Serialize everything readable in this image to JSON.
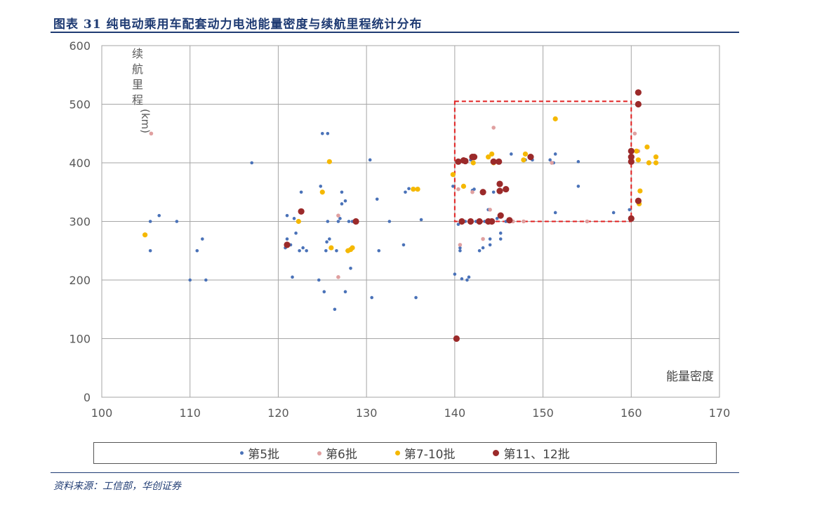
{
  "title": "图表 31  纯电动乘用车配套动力电池能量密度与续航里程统计分布",
  "source": "资料来源：工信部，华创证券",
  "chart_data": {
    "type": "scatter",
    "xlabel": "能量密度",
    "ylabel": "续航里程(km)",
    "xlim": [
      100,
      170
    ],
    "ylim": [
      0,
      600
    ],
    "x_ticks": [
      "100",
      "110",
      "120",
      "130",
      "140",
      "150",
      "160",
      "170"
    ],
    "y_ticks": [
      "0",
      "100",
      "200",
      "300",
      "400",
      "500",
      "600"
    ],
    "grid": true,
    "legend_position": "bottom",
    "highlight_box": {
      "x_range": [
        140,
        160
      ],
      "y_range": [
        300,
        505
      ],
      "color": "#e02020"
    },
    "series": [
      {
        "name": "第5批",
        "color": "#4a72b8",
        "points": [
          [
            105.5,
            300
          ],
          [
            105.5,
            250
          ],
          [
            106.5,
            310
          ],
          [
            108.5,
            300
          ],
          [
            110,
            200
          ],
          [
            110.8,
            250
          ],
          [
            111.4,
            270
          ],
          [
            111.8,
            200
          ],
          [
            117,
            400
          ],
          [
            120.8,
            255
          ],
          [
            121,
            270
          ],
          [
            121,
            310
          ],
          [
            121.4,
            260
          ],
          [
            121.6,
            205
          ],
          [
            121.8,
            305
          ],
          [
            122,
            280
          ],
          [
            122.4,
            250
          ],
          [
            122.6,
            350
          ],
          [
            122.8,
            255
          ],
          [
            123.2,
            250
          ],
          [
            124.6,
            200
          ],
          [
            124.8,
            360
          ],
          [
            125,
            450
          ],
          [
            125.2,
            180
          ],
          [
            125.4,
            250
          ],
          [
            125.5,
            265
          ],
          [
            125.6,
            300
          ],
          [
            125.6,
            450
          ],
          [
            125.8,
            270
          ],
          [
            126,
            255
          ],
          [
            126.4,
            150
          ],
          [
            126.6,
            250
          ],
          [
            126.8,
            300
          ],
          [
            127,
            305
          ],
          [
            127.2,
            350
          ],
          [
            127.2,
            330
          ],
          [
            127.6,
            335
          ],
          [
            127.6,
            180
          ],
          [
            127.8,
            250
          ],
          [
            128,
            300
          ],
          [
            128.2,
            220
          ],
          [
            128.4,
            300
          ],
          [
            130.4,
            405
          ],
          [
            130.6,
            170
          ],
          [
            131.2,
            338
          ],
          [
            131.4,
            250
          ],
          [
            132.6,
            300
          ],
          [
            134.2,
            260
          ],
          [
            134.4,
            350
          ],
          [
            134.8,
            356
          ],
          [
            135.6,
            170
          ],
          [
            136.2,
            303
          ],
          [
            139.8,
            360
          ],
          [
            140,
            210
          ],
          [
            140.4,
            295
          ],
          [
            140.6,
            250
          ],
          [
            140.6,
            255
          ],
          [
            140.8,
            202
          ],
          [
            141.2,
            300
          ],
          [
            141.4,
            200
          ],
          [
            141.6,
            205
          ],
          [
            141.8,
            405
          ],
          [
            142,
            353
          ],
          [
            142.2,
            355
          ],
          [
            142.4,
            300
          ],
          [
            142.8,
            250
          ],
          [
            143.2,
            255
          ],
          [
            143.4,
            300
          ],
          [
            143.8,
            320
          ],
          [
            144,
            260
          ],
          [
            144,
            270
          ],
          [
            144.4,
            350
          ],
          [
            144.8,
            305
          ],
          [
            145.2,
            280
          ],
          [
            145.2,
            270
          ],
          [
            145.8,
            300
          ],
          [
            146.4,
            415
          ],
          [
            148,
            405
          ],
          [
            148.8,
            405
          ],
          [
            150.8,
            405
          ],
          [
            151.2,
            400
          ],
          [
            151.4,
            415
          ],
          [
            151.4,
            315
          ],
          [
            154,
            360
          ],
          [
            154,
            402
          ],
          [
            158,
            315
          ],
          [
            159.8,
            320
          ]
        ]
      },
      {
        "name": "第6批",
        "color": "#e0a0a0",
        "points": [
          [
            105.6,
            450
          ],
          [
            126.8,
            310
          ],
          [
            126.8,
            205
          ],
          [
            140.4,
            355
          ],
          [
            140.6,
            260
          ],
          [
            142,
            350
          ],
          [
            143.2,
            270
          ],
          [
            143.8,
            410
          ],
          [
            144,
            320
          ],
          [
            144.4,
            460
          ],
          [
            146.6,
            300
          ],
          [
            147.8,
            300
          ],
          [
            151,
            400
          ],
          [
            155,
            300
          ],
          [
            160.4,
            450
          ],
          [
            160.8,
            420
          ]
        ]
      },
      {
        "name": "第7-10批",
        "color": "#f5b800",
        "points": [
          [
            104.9,
            277
          ],
          [
            122.3,
            300
          ],
          [
            125,
            350
          ],
          [
            125.8,
            402
          ],
          [
            126,
            255
          ],
          [
            127.9,
            250
          ],
          [
            128.2,
            252
          ],
          [
            128.4,
            255
          ],
          [
            135.3,
            355
          ],
          [
            135.8,
            355
          ],
          [
            139.8,
            380
          ],
          [
            141,
            360
          ],
          [
            142.1,
            400
          ],
          [
            143.8,
            410
          ],
          [
            144.2,
            415
          ],
          [
            144.4,
            400
          ],
          [
            147.8,
            405
          ],
          [
            148,
            415
          ],
          [
            151.4,
            475
          ],
          [
            160.6,
            420
          ],
          [
            160.8,
            405
          ],
          [
            160.9,
            330
          ],
          [
            161,
            352
          ],
          [
            161.8,
            427
          ],
          [
            162,
            400
          ],
          [
            162.8,
            410
          ],
          [
            162.8,
            400
          ]
        ]
      },
      {
        "name": "第11、12批",
        "color": "#9b2a2a",
        "points": [
          [
            121,
            260
          ],
          [
            122.6,
            317
          ],
          [
            128.8,
            300
          ],
          [
            140.2,
            100
          ],
          [
            140.4,
            402
          ],
          [
            140.8,
            300
          ],
          [
            141,
            404
          ],
          [
            141.2,
            403
          ],
          [
            141.8,
            300
          ],
          [
            142,
            410
          ],
          [
            142.2,
            410
          ],
          [
            142.8,
            300
          ],
          [
            143.2,
            350
          ],
          [
            143.8,
            300
          ],
          [
            144.2,
            300
          ],
          [
            144.4,
            402
          ],
          [
            145.1,
            352
          ],
          [
            145.1,
            364
          ],
          [
            145.2,
            310
          ],
          [
            145.8,
            355
          ],
          [
            146.2,
            302
          ],
          [
            148.6,
            410
          ],
          [
            145,
            402
          ],
          [
            160,
            420
          ],
          [
            160,
            410
          ],
          [
            160,
            402
          ],
          [
            160,
            305
          ],
          [
            160.8,
            520
          ],
          [
            160.8,
            500
          ],
          [
            160.8,
            335
          ]
        ]
      }
    ]
  }
}
